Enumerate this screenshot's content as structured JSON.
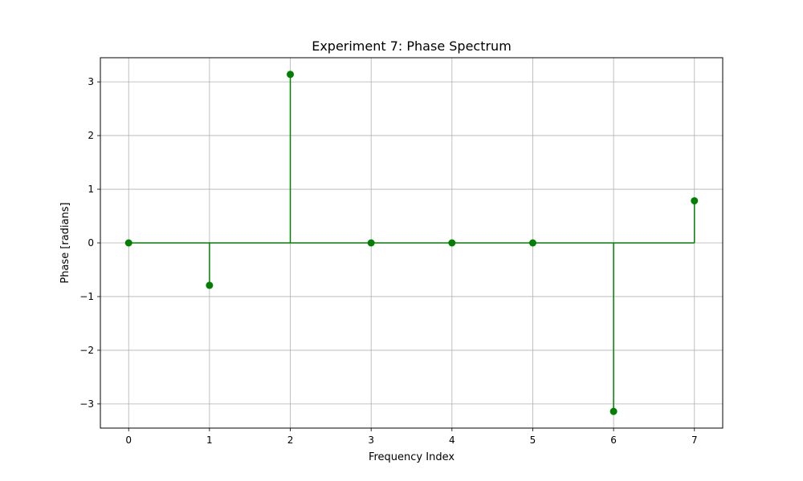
{
  "chart_data": {
    "type": "stem",
    "title": "Experiment 7: Phase Spectrum",
    "xlabel": "Frequency Index",
    "ylabel": "Phase [radians]",
    "x": [
      0,
      1,
      2,
      3,
      4,
      5,
      6,
      7
    ],
    "y": [
      0,
      -0.79,
      3.14,
      0,
      0,
      0,
      -3.14,
      0.785
    ],
    "xlim": [
      -0.35,
      7.35
    ],
    "ylim": [
      -3.45,
      3.45
    ],
    "xticks": [
      "0",
      "1",
      "2",
      "3",
      "4",
      "5",
      "6",
      "7"
    ],
    "yticks": [
      "−3",
      "−2",
      "−1",
      "0",
      "1",
      "2",
      "3"
    ],
    "grid": true,
    "color": "#008000",
    "grid_color": "#b0b0b0"
  }
}
